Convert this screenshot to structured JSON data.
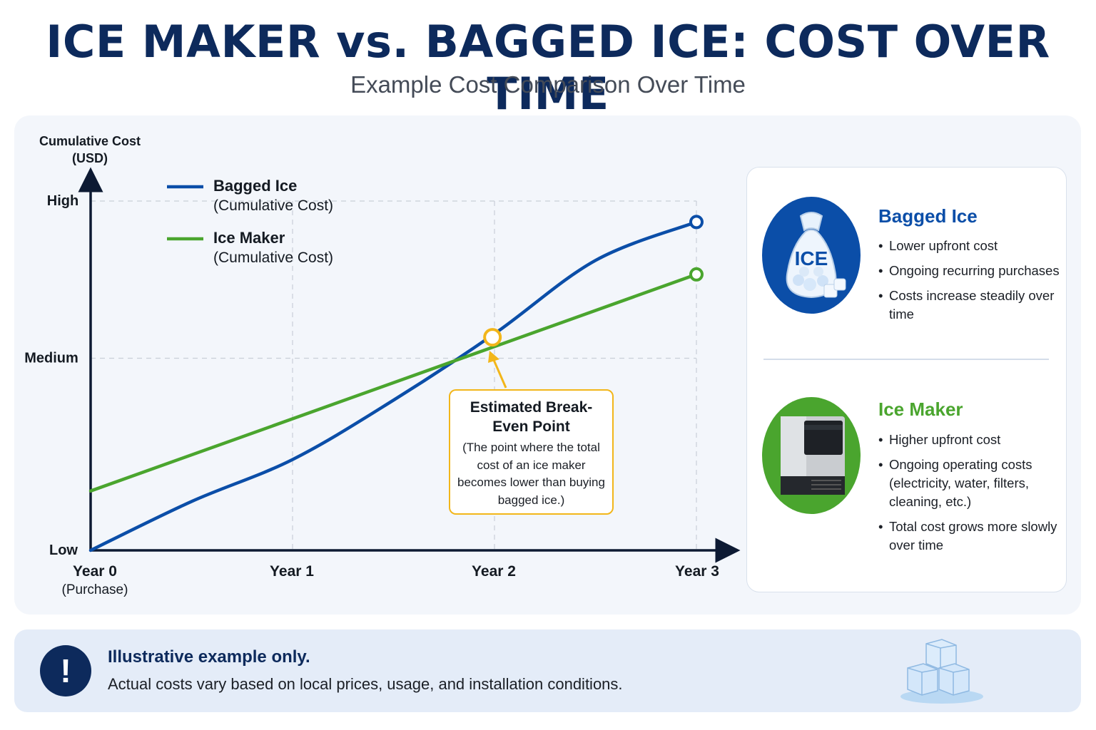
{
  "title": "ICE MAKER vs. BAGGED ICE: COST OVER TIME",
  "subtitle": "Example Cost Comparison Over Time",
  "chart_data": {
    "type": "line",
    "ylabel_line1": "Cumulative Cost",
    "ylabel_line2": "(USD)",
    "y_ticks": [
      "Low",
      "Medium",
      "High"
    ],
    "x_ticks": [
      {
        "label": "Year 0",
        "sub": "(Purchase)",
        "x": 0
      },
      {
        "label": "Year 1",
        "sub": "",
        "x": 1
      },
      {
        "label": "Year 2",
        "sub": "",
        "x": 2
      },
      {
        "label": "Year 3",
        "sub": "",
        "x": 3
      }
    ],
    "xlim": [
      0,
      3.2
    ],
    "ylim": [
      0,
      1
    ],
    "grid": true,
    "legend_position": "top-left",
    "series": [
      {
        "name": "Bagged Ice",
        "subname": "(Cumulative Cost)",
        "color": "#0b4ea8",
        "x": [
          0,
          0.5,
          1,
          1.5,
          2,
          2.5,
          3
        ],
        "y": [
          0,
          0.14,
          0.26,
          0.43,
          0.62,
          0.83,
          0.94
        ]
      },
      {
        "name": "Ice Maker",
        "subname": "(Cumulative Cost)",
        "color": "#4aa52e",
        "x": [
          0,
          3
        ],
        "y": [
          0.17,
          0.79
        ]
      }
    ],
    "break_even": {
      "x": 1.99,
      "y": 0.61,
      "color": "#f2b61a"
    }
  },
  "callout": {
    "title": "Estimated Break-Even Point",
    "text": "(The point where the total cost of an ice maker becomes lower than buying bagged ice.)"
  },
  "cards": {
    "bagged": {
      "title": "Bagged Ice",
      "color": "#0b4ea8",
      "icon_label": "ICE",
      "bullets": [
        "Lower upfront cost",
        "Ongoing recurring purchases",
        "Costs increase steadily over time"
      ]
    },
    "maker": {
      "title": "Ice Maker",
      "color": "#4aa52e",
      "bullets": [
        "Higher upfront cost",
        "Ongoing operating costs (electricity, water, filters, cleaning, etc.)",
        "Total cost grows more slowly over time"
      ]
    }
  },
  "note": {
    "title": "Illustrative example only.",
    "text": "Actual costs vary based on local prices, usage, and installation conditions."
  }
}
